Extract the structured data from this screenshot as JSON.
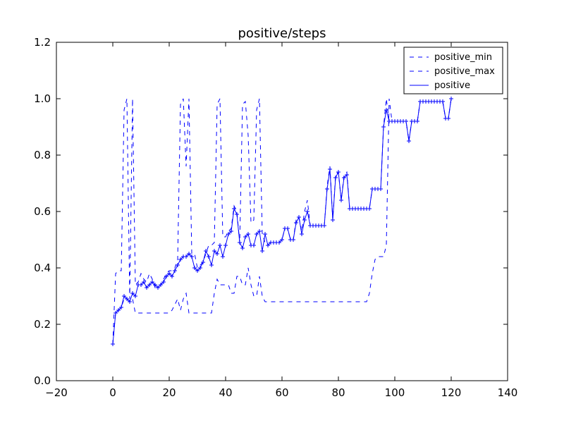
{
  "chart_data": {
    "type": "line",
    "title": "positive/steps",
    "xlabel": "",
    "ylabel": "",
    "xlim": [
      -20,
      140
    ],
    "ylim": [
      0.0,
      1.2
    ],
    "xticks": [
      "−20",
      "0",
      "20",
      "40",
      "60",
      "80",
      "100",
      "120",
      "140"
    ],
    "yticks": [
      "0.0",
      "0.2",
      "0.4",
      "0.6",
      "0.8",
      "1.0",
      "1.2"
    ],
    "grid": false,
    "legend_position": "top-right",
    "colors": {
      "series": "#0000ff",
      "axes": "#000000",
      "background": "#ffffff"
    },
    "series": [
      {
        "name": "positive_min",
        "style": "dashed",
        "x": [
          0,
          1,
          2,
          3,
          4,
          5,
          6,
          7,
          8,
          9,
          10,
          11,
          12,
          13,
          14,
          15,
          16,
          17,
          18,
          19,
          20,
          21,
          22,
          23,
          24,
          25,
          26,
          27,
          28,
          29,
          30,
          31,
          32,
          33,
          34,
          35,
          36,
          37,
          38,
          39,
          40,
          41,
          42,
          43,
          44,
          45,
          46,
          47,
          48,
          49,
          50,
          51,
          52,
          53,
          54,
          55,
          56,
          57,
          58,
          59,
          60,
          61,
          62,
          63,
          64,
          65,
          66,
          67,
          68,
          69,
          70,
          71,
          72,
          73,
          74,
          75,
          76,
          77,
          78,
          79,
          80,
          81,
          82,
          83,
          84,
          85,
          86,
          87,
          88,
          89,
          90,
          91,
          92,
          93,
          94,
          95,
          96,
          97,
          98,
          99,
          100,
          101,
          102,
          103,
          104,
          105,
          106,
          107,
          108,
          109,
          110,
          111,
          112,
          113,
          114,
          115,
          116,
          117,
          118,
          119,
          120
        ],
        "values": [
          0.13,
          0.24,
          0.25,
          0.26,
          0.29,
          0.29,
          0.28,
          0.29,
          0.24,
          0.24,
          0.24,
          0.24,
          0.24,
          0.24,
          0.24,
          0.24,
          0.24,
          0.24,
          0.24,
          0.24,
          0.24,
          0.25,
          0.27,
          0.29,
          0.25,
          0.29,
          0.31,
          0.24,
          0.24,
          0.24,
          0.24,
          0.24,
          0.24,
          0.24,
          0.24,
          0.24,
          0.31,
          0.36,
          0.34,
          0.34,
          0.34,
          0.34,
          0.31,
          0.31,
          0.37,
          0.37,
          0.34,
          0.34,
          0.4,
          0.34,
          0.3,
          0.3,
          0.37,
          0.3,
          0.28,
          0.28,
          0.28,
          0.28,
          0.28,
          0.28,
          0.28,
          0.28,
          0.28,
          0.28,
          0.28,
          0.28,
          0.28,
          0.28,
          0.28,
          0.28,
          0.28,
          0.28,
          0.28,
          0.28,
          0.28,
          0.28,
          0.28,
          0.28,
          0.28,
          0.28,
          0.28,
          0.28,
          0.28,
          0.28,
          0.28,
          0.28,
          0.28,
          0.28,
          0.28,
          0.28,
          0.28,
          0.31,
          0.38,
          0.43,
          0.44,
          0.44,
          0.44,
          0.48,
          1.0,
          0.92,
          0.92,
          0.92,
          0.92,
          0.92,
          0.92,
          0.85,
          0.92,
          0.92,
          0.92,
          0.99,
          0.99,
          0.99,
          0.99,
          0.99,
          0.99,
          0.99,
          0.99,
          0.99,
          0.93,
          0.93,
          1.0
        ]
      },
      {
        "name": "positive_max",
        "style": "dashed",
        "x": [
          0,
          1,
          2,
          3,
          4,
          5,
          6,
          7,
          8,
          9,
          10,
          11,
          12,
          13,
          14,
          15,
          16,
          17,
          18,
          19,
          20,
          21,
          22,
          23,
          24,
          25,
          26,
          27,
          28,
          29,
          30,
          31,
          32,
          33,
          34,
          35,
          36,
          37,
          38,
          39,
          40,
          41,
          42,
          43,
          44,
          45,
          46,
          47,
          48,
          49,
          50,
          51,
          52,
          53,
          54,
          55,
          56,
          57,
          58,
          59,
          60,
          61,
          62,
          63,
          64,
          65,
          66,
          67,
          68,
          69,
          70,
          71,
          72,
          73,
          74,
          75,
          76,
          77,
          78,
          79,
          80,
          81,
          82,
          83,
          84,
          85,
          86,
          87,
          88,
          89,
          90,
          91,
          92,
          93,
          94,
          95,
          96,
          97,
          98,
          99,
          100,
          101,
          102,
          103,
          104,
          105,
          106,
          107,
          108,
          109,
          110,
          111,
          112,
          113,
          114,
          115,
          116,
          117,
          118,
          119,
          120
        ],
        "values": [
          0.13,
          0.38,
          0.39,
          0.39,
          0.96,
          1.0,
          0.29,
          1.0,
          0.34,
          0.35,
          0.38,
          0.36,
          0.35,
          0.38,
          0.36,
          0.33,
          0.34,
          0.34,
          0.36,
          0.38,
          0.39,
          0.39,
          0.4,
          0.43,
          0.98,
          1.0,
          0.76,
          1.0,
          0.45,
          0.45,
          0.4,
          0.41,
          0.42,
          0.45,
          0.48,
          0.48,
          0.49,
          0.98,
          1.0,
          0.51,
          0.51,
          0.53,
          0.54,
          0.62,
          0.6,
          0.49,
          0.98,
          0.99,
          0.87,
          0.56,
          0.57,
          0.96,
          1.0,
          0.52,
          0.49,
          0.49,
          0.49,
          0.49,
          0.49,
          0.49,
          0.5,
          0.54,
          0.54,
          0.5,
          0.5,
          0.57,
          0.58,
          0.53,
          0.6,
          0.64,
          0.55,
          0.55,
          0.55,
          0.55,
          0.55,
          0.55,
          0.69,
          0.76,
          0.57,
          0.73,
          0.74,
          0.64,
          0.73,
          0.74,
          0.61,
          0.61,
          0.61,
          0.61,
          0.61,
          0.61,
          0.61,
          0.61,
          0.68,
          0.68,
          0.68,
          0.68,
          0.9,
          1.0,
          0.92,
          0.92,
          0.92,
          0.92,
          0.92,
          0.92,
          0.92,
          0.85,
          0.92,
          0.92,
          0.92,
          0.99,
          0.99,
          0.99,
          0.99,
          0.99,
          0.99,
          0.99,
          0.99,
          0.99,
          0.93,
          0.93,
          1.0
        ]
      },
      {
        "name": "positive",
        "style": "solid",
        "marker": "+",
        "x": [
          0,
          1,
          2,
          3,
          4,
          5,
          6,
          7,
          8,
          9,
          10,
          11,
          12,
          13,
          14,
          15,
          16,
          17,
          18,
          19,
          20,
          21,
          22,
          23,
          24,
          25,
          26,
          27,
          28,
          29,
          30,
          31,
          32,
          33,
          34,
          35,
          36,
          37,
          38,
          39,
          40,
          41,
          42,
          43,
          44,
          45,
          46,
          47,
          48,
          49,
          50,
          51,
          52,
          53,
          54,
          55,
          56,
          57,
          58,
          59,
          60,
          61,
          62,
          63,
          64,
          65,
          66,
          67,
          68,
          69,
          70,
          71,
          72,
          73,
          74,
          75,
          76,
          77,
          78,
          79,
          80,
          81,
          82,
          83,
          84,
          85,
          86,
          87,
          88,
          89,
          90,
          91,
          92,
          93,
          94,
          95,
          96,
          97,
          98,
          99,
          100,
          101,
          102,
          103,
          104,
          105,
          106,
          107,
          108,
          109,
          110,
          111,
          112,
          113,
          114,
          115,
          116,
          117,
          118,
          119,
          120
        ],
        "values": [
          0.13,
          0.24,
          0.25,
          0.26,
          0.3,
          0.29,
          0.28,
          0.31,
          0.3,
          0.34,
          0.34,
          0.35,
          0.33,
          0.34,
          0.35,
          0.34,
          0.33,
          0.34,
          0.35,
          0.37,
          0.38,
          0.37,
          0.39,
          0.41,
          0.43,
          0.44,
          0.44,
          0.45,
          0.44,
          0.4,
          0.39,
          0.4,
          0.42,
          0.46,
          0.44,
          0.41,
          0.46,
          0.45,
          0.48,
          0.44,
          0.48,
          0.52,
          0.53,
          0.61,
          0.59,
          0.49,
          0.47,
          0.51,
          0.52,
          0.48,
          0.48,
          0.52,
          0.53,
          0.46,
          0.52,
          0.48,
          0.49,
          0.49,
          0.49,
          0.49,
          0.5,
          0.54,
          0.54,
          0.5,
          0.5,
          0.56,
          0.58,
          0.52,
          0.57,
          0.6,
          0.55,
          0.55,
          0.55,
          0.55,
          0.55,
          0.55,
          0.68,
          0.75,
          0.57,
          0.72,
          0.74,
          0.64,
          0.72,
          0.73,
          0.61,
          0.61,
          0.61,
          0.61,
          0.61,
          0.61,
          0.61,
          0.61,
          0.68,
          0.68,
          0.68,
          0.68,
          0.9,
          0.96,
          0.92,
          0.92,
          0.92,
          0.92,
          0.92,
          0.92,
          0.92,
          0.85,
          0.92,
          0.92,
          0.92,
          0.99,
          0.99,
          0.99,
          0.99,
          0.99,
          0.99,
          0.99,
          0.99,
          0.99,
          0.93,
          0.93,
          1.0
        ]
      }
    ]
  }
}
